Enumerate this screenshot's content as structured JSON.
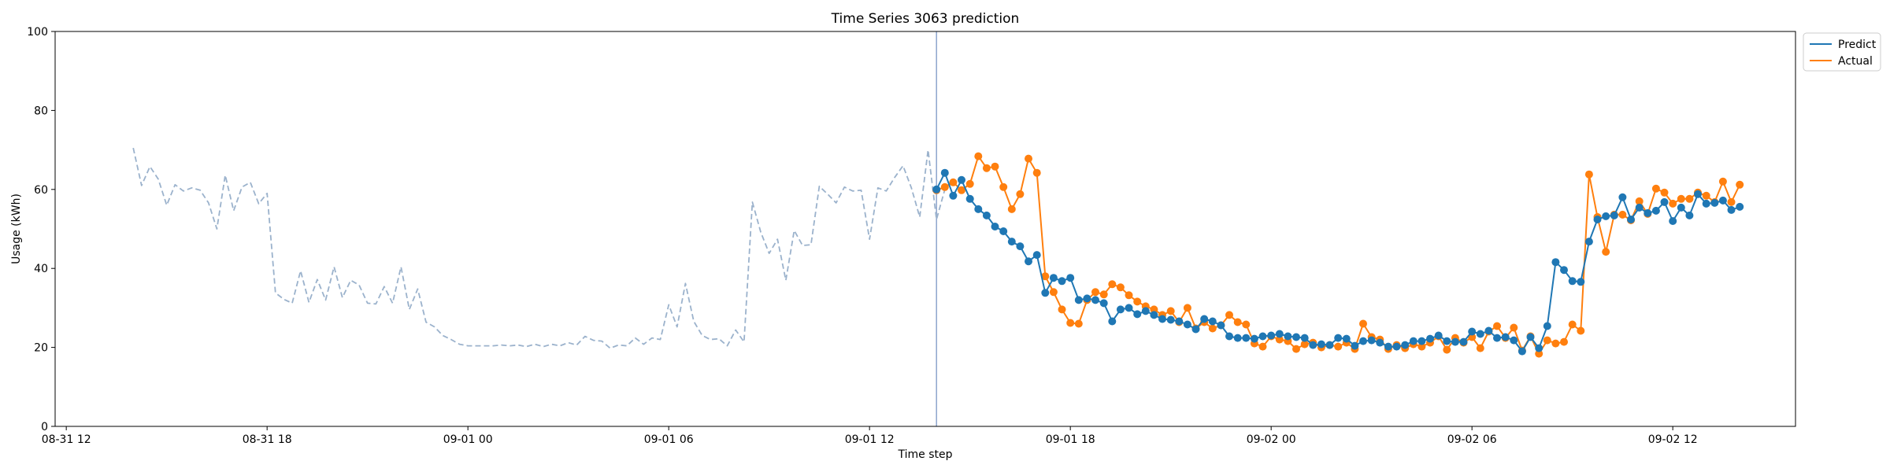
{
  "chart_data": {
    "type": "line",
    "title": "Time Series 3063 prediction",
    "xlabel": "Time step",
    "ylabel": "Usage (kWh)",
    "ylim": [
      0,
      100
    ],
    "yticks": [
      0,
      20,
      40,
      60,
      80,
      100
    ],
    "x_start": "08-31 14:00",
    "x_interval_minutes": 15,
    "xlim": [
      "08-31 11:40",
      "09-02 15:40"
    ],
    "xticks": [
      {
        "t": "08-31 12:00",
        "label": "08-31 12"
      },
      {
        "t": "08-31 18:00",
        "label": "08-31 18"
      },
      {
        "t": "09-01 00:00",
        "label": "09-01 00"
      },
      {
        "t": "09-01 06:00",
        "label": "09-01 06"
      },
      {
        "t": "09-01 12:00",
        "label": "09-01 12"
      },
      {
        "t": "09-01 18:00",
        "label": "09-01 18"
      },
      {
        "t": "09-02 00:00",
        "label": "09-02 00"
      },
      {
        "t": "09-02 06:00",
        "label": "09-02 06"
      },
      {
        "t": "09-02 12:00",
        "label": "09-02 12"
      }
    ],
    "forecast_start": "09-01 14:00",
    "grid": false,
    "legend_position": "top-right",
    "history": {
      "color": "#9bb2cc",
      "values": [
        70.5,
        61,
        65.8,
        62.6,
        56,
        61.2,
        59.6,
        60.4,
        59.8,
        56.6,
        50,
        63.6,
        54.6,
        60.6,
        61.8,
        56.4,
        59,
        33.8,
        32.2,
        31.2,
        39.4,
        31.4,
        37.2,
        32,
        40.4,
        32.6,
        37,
        35.8,
        31.2,
        31,
        35.4,
        31.2,
        40.4,
        29.6,
        34.8,
        26.4,
        25.2,
        23,
        22,
        20.8,
        20.4,
        20.4,
        20.4,
        20.4,
        20.6,
        20.4,
        20.6,
        20.2,
        20.8,
        20.2,
        20.8,
        20.4,
        21.2,
        20.6,
        22.8,
        21.8,
        21.6,
        19.8,
        20.6,
        20.4,
        22.4,
        20.8,
        22.4,
        22,
        30.8,
        25.2,
        36.2,
        26.6,
        23,
        22,
        22.2,
        20.4,
        24.4,
        21.4,
        56.8,
        49.2,
        43.8,
        47.4,
        37,
        49.6,
        45.8,
        46,
        60.8,
        58.8,
        56.6,
        60.6,
        59.6,
        59.8,
        47.4,
        60.4,
        59.6,
        63,
        66,
        60.4,
        53,
        70,
        52.4,
        60
      ]
    },
    "series": [
      {
        "name": "Predict",
        "color": "#1f77b4",
        "values": [
          60,
          64.2,
          58.4,
          62.4,
          57.6,
          55,
          53.4,
          50.6,
          49.4,
          46.8,
          45.6,
          41.8,
          43.4,
          33.8,
          37.6,
          36.8,
          37.6,
          32,
          32.4,
          32,
          31.2,
          26.6,
          29.6,
          30,
          28.4,
          29.2,
          28.2,
          27.2,
          27,
          26.6,
          25.8,
          24.6,
          27.2,
          26.6,
          25.6,
          22.8,
          22.4,
          22.4,
          22.2,
          22.8,
          23,
          23.4,
          22.8,
          22.6,
          22.4,
          20.6,
          20.8,
          20.6,
          22.4,
          22.2,
          20.4,
          21.6,
          21.8,
          21.2,
          20.2,
          20.2,
          20.6,
          21.6,
          21.6,
          22.2,
          23,
          21.6,
          21.4,
          21.4,
          24,
          23.4,
          24.2,
          22.4,
          22.6,
          21.8,
          19,
          22.6,
          19.8,
          25.4,
          41.6,
          39.6,
          36.8,
          36.6,
          46.8,
          52.4,
          53.2,
          53.4,
          58,
          52.4,
          55.4,
          54,
          54.6,
          56.8,
          52,
          55.4,
          53.4,
          58.8,
          56.4,
          56.6,
          57.2,
          54.8,
          55.6
        ]
      },
      {
        "name": "Actual",
        "color": "#ff7f0e",
        "values": [
          59.8,
          60.6,
          61.8,
          59.8,
          61.4,
          68.4,
          65.4,
          65.8,
          60.6,
          55,
          58.8,
          67.8,
          64.2,
          38,
          34,
          29.6,
          26.2,
          26,
          32,
          34,
          33.4,
          36,
          35.2,
          33.2,
          31.6,
          30.4,
          29.6,
          28.2,
          29.2,
          26.4,
          30,
          24.8,
          26.4,
          24.8,
          25.6,
          28.2,
          26.4,
          25.8,
          21,
          20.2,
          22.8,
          22,
          21.6,
          19.6,
          20.8,
          21.2,
          20,
          20.6,
          20.2,
          21.2,
          19.6,
          26,
          22.6,
          22,
          19.6,
          20.6,
          19.8,
          20.8,
          20.2,
          21.2,
          22.8,
          19.4,
          22.4,
          21.2,
          22.6,
          19.8,
          24,
          25.4,
          22.4,
          25,
          19.2,
          22.8,
          18.4,
          21.8,
          21,
          21.4,
          25.8,
          24.2,
          63.8,
          53,
          44.2,
          53.6,
          53.6,
          52.2,
          57,
          53.8,
          60.2,
          59.2,
          56.4,
          57.6,
          57.6,
          59.2,
          58.4,
          56.8,
          62,
          56.8,
          61.2
        ]
      }
    ]
  }
}
